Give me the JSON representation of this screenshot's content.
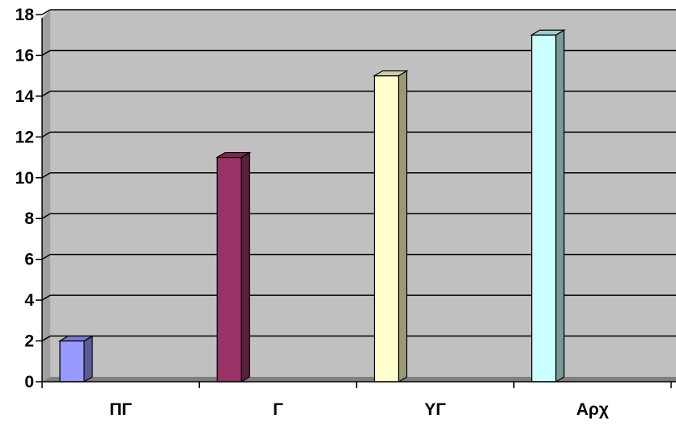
{
  "chart_data": {
    "type": "bar",
    "categories": [
      "ΠΓ",
      "Γ",
      "ΥΓ",
      "Αρχ"
    ],
    "values": [
      2,
      11,
      15,
      17
    ],
    "ylim": [
      0,
      18
    ],
    "yticks": [
      0,
      2,
      4,
      6,
      8,
      10,
      12,
      14,
      16,
      18
    ],
    "grid": true,
    "legend": "none",
    "plot_background": "#c0c0c0",
    "bar_colors": [
      "#9999ff",
      "#993366",
      "#ffffcc",
      "#ccffff"
    ],
    "bar_side_colors": [
      "#5c5c99",
      "#5c1f3d",
      "#99997a",
      "#7a9999"
    ],
    "bar_top_colors": [
      "#7a7acc",
      "#7a2952",
      "#cccca3",
      "#a3cccc"
    ]
  }
}
